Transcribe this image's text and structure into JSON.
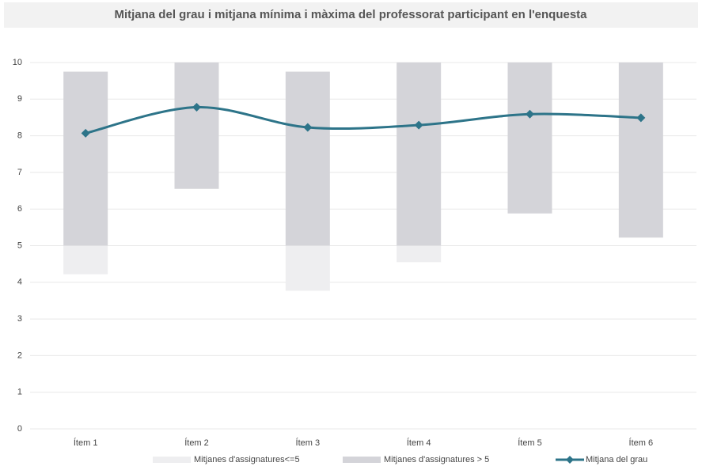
{
  "chart_data": {
    "type": "range-bar-line",
    "title": "Mitjana del grau i mitjana mínima i màxima del professorat participant en l'enquesta",
    "categories": [
      "Ítem 1",
      "Ítem 2",
      "Ítem 3",
      "Ítem 4",
      "Ítem 5",
      "Ítem 6"
    ],
    "series": [
      {
        "name": "Mitjanes d'assignatures<=5",
        "color": "#eeeef0",
        "type": "range",
        "low": [
          4.22,
          null,
          3.77,
          4.55,
          null,
          null
        ],
        "high": [
          5,
          null,
          5,
          5,
          null,
          null
        ]
      },
      {
        "name": "Mitjanes d'assignatures > 5",
        "color": "#d4d4d9",
        "type": "range",
        "low": [
          5,
          6.55,
          5,
          5,
          5.88,
          5.22
        ],
        "high": [
          9.75,
          10,
          9.75,
          10,
          10,
          10
        ]
      },
      {
        "name": "Mitjana del grau",
        "color": "#2d7489",
        "type": "line",
        "values": [
          8.07,
          8.78,
          8.23,
          8.29,
          8.59,
          8.49
        ]
      }
    ],
    "ylim": [
      0,
      10
    ],
    "yticks": [
      0,
      1,
      2,
      3,
      4,
      5,
      6,
      7,
      8,
      9,
      10
    ],
    "grid": true,
    "legend": "bottom"
  }
}
